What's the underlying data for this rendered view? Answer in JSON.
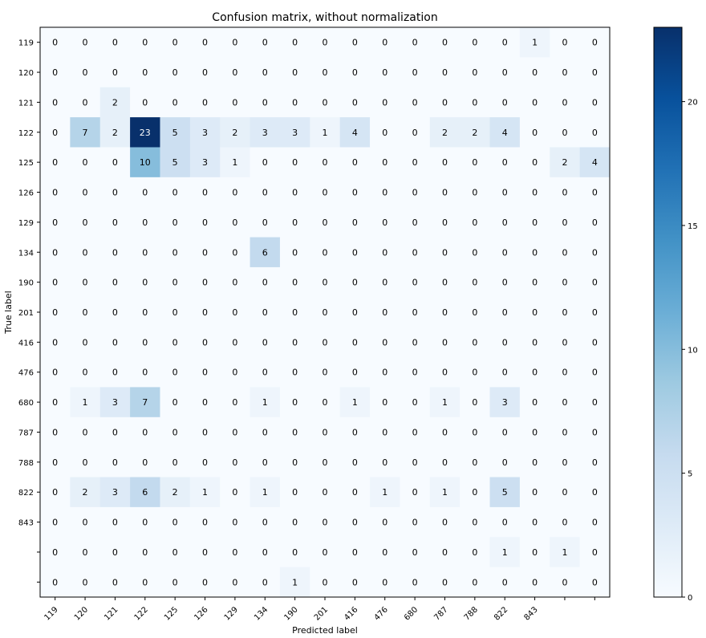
{
  "chart_data": {
    "type": "heatmap",
    "title": "Confusion matrix, without normalization",
    "xlabel": "Predicted label",
    "ylabel": "True label",
    "colormap": "Blues",
    "color_range": [
      0,
      23
    ],
    "colorbar_ticks": [
      0,
      5,
      10,
      15,
      20
    ],
    "row_labels": [
      "119",
      "120",
      "121",
      "122",
      "125",
      "126",
      "129",
      "134",
      "190",
      "201",
      "416",
      "476",
      "680",
      "787",
      "788",
      "822",
      "843",
      "",
      ""
    ],
    "col_labels": [
      "119",
      "120",
      "121",
      "122",
      "125",
      "126",
      "129",
      "134",
      "190",
      "201",
      "416",
      "476",
      "680",
      "787",
      "788",
      "822",
      "843",
      "",
      ""
    ],
    "matrix": [
      [
        0,
        0,
        0,
        0,
        0,
        0,
        0,
        0,
        0,
        0,
        0,
        0,
        0,
        0,
        0,
        0,
        1,
        0,
        0
      ],
      [
        0,
        0,
        0,
        0,
        0,
        0,
        0,
        0,
        0,
        0,
        0,
        0,
        0,
        0,
        0,
        0,
        0,
        0,
        0
      ],
      [
        0,
        0,
        2,
        0,
        0,
        0,
        0,
        0,
        0,
        0,
        0,
        0,
        0,
        0,
        0,
        0,
        0,
        0,
        0
      ],
      [
        0,
        7,
        2,
        23,
        5,
        3,
        2,
        3,
        3,
        1,
        4,
        0,
        0,
        2,
        2,
        4,
        0,
        0,
        0
      ],
      [
        0,
        0,
        0,
        10,
        5,
        3,
        1,
        0,
        0,
        0,
        0,
        0,
        0,
        0,
        0,
        0,
        0,
        2,
        4
      ],
      [
        0,
        0,
        0,
        0,
        0,
        0,
        0,
        0,
        0,
        0,
        0,
        0,
        0,
        0,
        0,
        0,
        0,
        0,
        0
      ],
      [
        0,
        0,
        0,
        0,
        0,
        0,
        0,
        0,
        0,
        0,
        0,
        0,
        0,
        0,
        0,
        0,
        0,
        0,
        0
      ],
      [
        0,
        0,
        0,
        0,
        0,
        0,
        0,
        6,
        0,
        0,
        0,
        0,
        0,
        0,
        0,
        0,
        0,
        0,
        0
      ],
      [
        0,
        0,
        0,
        0,
        0,
        0,
        0,
        0,
        0,
        0,
        0,
        0,
        0,
        0,
        0,
        0,
        0,
        0,
        0
      ],
      [
        0,
        0,
        0,
        0,
        0,
        0,
        0,
        0,
        0,
        0,
        0,
        0,
        0,
        0,
        0,
        0,
        0,
        0,
        0
      ],
      [
        0,
        0,
        0,
        0,
        0,
        0,
        0,
        0,
        0,
        0,
        0,
        0,
        0,
        0,
        0,
        0,
        0,
        0,
        0
      ],
      [
        0,
        0,
        0,
        0,
        0,
        0,
        0,
        0,
        0,
        0,
        0,
        0,
        0,
        0,
        0,
        0,
        0,
        0,
        0
      ],
      [
        0,
        1,
        3,
        7,
        0,
        0,
        0,
        1,
        0,
        0,
        1,
        0,
        0,
        1,
        0,
        3,
        0,
        0,
        0
      ],
      [
        0,
        0,
        0,
        0,
        0,
        0,
        0,
        0,
        0,
        0,
        0,
        0,
        0,
        0,
        0,
        0,
        0,
        0,
        0
      ],
      [
        0,
        0,
        0,
        0,
        0,
        0,
        0,
        0,
        0,
        0,
        0,
        0,
        0,
        0,
        0,
        0,
        0,
        0,
        0
      ],
      [
        0,
        2,
        3,
        6,
        2,
        1,
        0,
        1,
        0,
        0,
        0,
        1,
        0,
        1,
        0,
        5,
        0,
        0,
        0
      ],
      [
        0,
        0,
        0,
        0,
        0,
        0,
        0,
        0,
        0,
        0,
        0,
        0,
        0,
        0,
        0,
        0,
        0,
        0,
        0
      ],
      [
        0,
        0,
        0,
        0,
        0,
        0,
        0,
        0,
        0,
        0,
        0,
        0,
        0,
        0,
        0,
        1,
        0,
        1,
        0
      ],
      [
        0,
        0,
        0,
        0,
        0,
        0,
        0,
        0,
        1,
        0,
        0,
        0,
        0,
        0,
        0,
        0,
        0,
        0,
        0
      ]
    ]
  }
}
